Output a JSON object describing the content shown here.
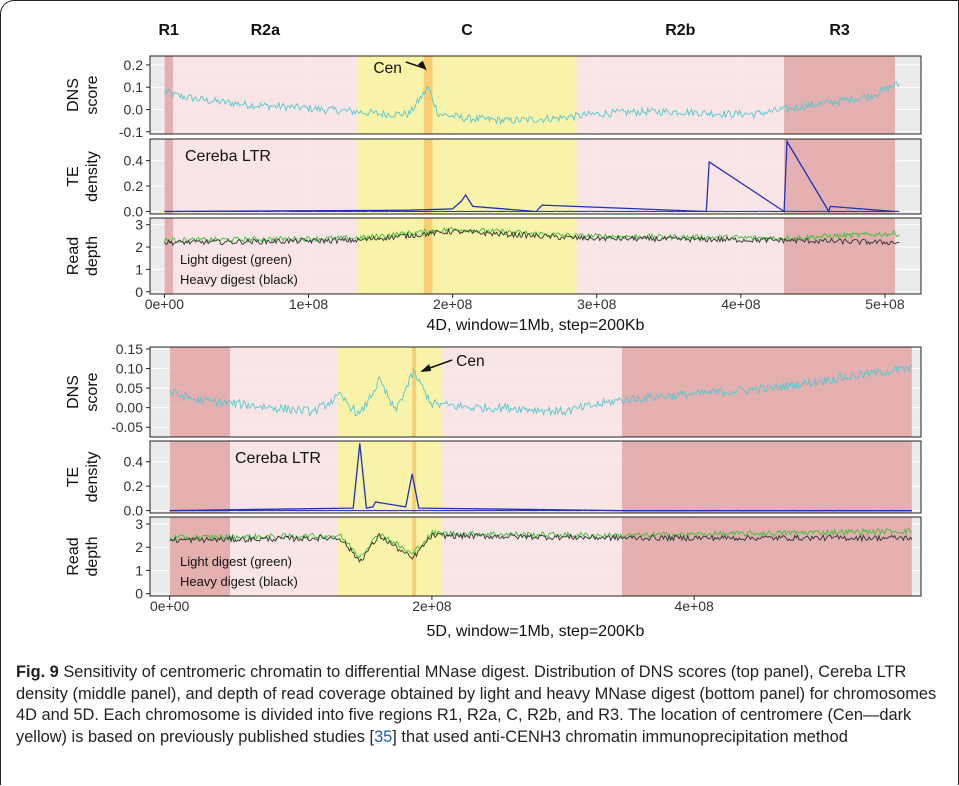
{
  "figure": {
    "caption_label": "Fig. 9",
    "caption_part1": " Sensitivity of centromeric chromatin to differential MNase digest. Distribution of DNS scores (top panel), Cereba LTR density (middle panel), and depth of read coverage obtained by light and heavy MNase digest (bottom panel) for chromosomes 4D and 5D. Each chromosome is divided into five regions R1, R2a, C, R2b, and R3. The location of centromere (Cen—dark yellow) is based on previously published studies [",
    "caption_ref": "35",
    "caption_part2": "] that used anti-CENH3 chromatin immunoprecipitation method"
  },
  "colors": {
    "region_R1": "#e2a4a4",
    "region_R3": "#e2a4a4",
    "region_R2": "#fbe4e4",
    "region_C": "#fcf59e",
    "centromere": "#f7ca6a",
    "dns_line": "#55c7d0",
    "te_line": "#1f2fbf",
    "light_digest": "#3cbf3c",
    "heavy_digest": "#333333",
    "panel_bg": "#ebebeb",
    "grid": "#ffffff"
  },
  "chart_data": [
    {
      "type": "line",
      "chromosome": "4D",
      "xlabel": "4D, window=1Mb, step=200Kb",
      "x_range": [
        0,
        510000000
      ],
      "xlim": [
        -10000000,
        525000000
      ],
      "x_ticks": [
        0,
        100000000,
        200000000,
        300000000,
        400000000,
        500000000
      ],
      "x_tick_labels": [
        "0e+00",
        "1e+08",
        "2e+08",
        "3e+08",
        "4e+08",
        "5e+08"
      ],
      "region_labels": [
        "R1",
        "R2a",
        "C",
        "R2b",
        "R3"
      ],
      "regions": [
        {
          "name": "R1",
          "start": 0,
          "end": 6000000
        },
        {
          "name": "R2a",
          "start": 6000000,
          "end": 134000000
        },
        {
          "name": "C",
          "start": 134000000,
          "end": 286000000
        },
        {
          "name": "R2b",
          "start": 286000000,
          "end": 430000000
        },
        {
          "name": "R3",
          "start": 430000000,
          "end": 507000000
        }
      ],
      "centromere": {
        "start": 180000000,
        "end": 186000000
      },
      "panels": [
        {
          "id": "dns",
          "ylabel_lines": [
            "DNS",
            "score"
          ],
          "ylim": [
            -0.11,
            0.24
          ],
          "y_ticks": [
            -0.1,
            0.0,
            0.1,
            0.2
          ],
          "y_tick_labels": [
            "-0.1",
            "0.0",
            "0.1",
            "0.2"
          ],
          "annotation": {
            "text": "Cen",
            "x": 180000000,
            "y": 0.21
          },
          "series": [
            {
              "x": [
                0,
                10000000,
                30000000,
                60000000,
                90000000,
                110000000,
                134000000,
                150000000,
                170000000,
                183000000,
                190000000,
                210000000,
                240000000,
                270000000,
                300000000,
                330000000,
                360000000,
                390000000,
                410000000,
                430000000,
                450000000,
                470000000,
                490000000,
                507000000
              ],
              "values": [
                0.08,
                0.06,
                0.04,
                0.02,
                0.01,
                0.0,
                -0.01,
                -0.02,
                -0.02,
                0.1,
                -0.02,
                -0.04,
                -0.05,
                -0.04,
                -0.02,
                -0.01,
                -0.01,
                -0.02,
                -0.02,
                0.0,
                0.02,
                0.04,
                0.06,
                0.11
              ]
            }
          ]
        },
        {
          "id": "te",
          "ylabel_lines": [
            "TE",
            "density"
          ],
          "ylim": [
            -0.02,
            0.57
          ],
          "y_ticks": [
            0.0,
            0.2,
            0.4
          ],
          "y_tick_labels": [
            "0.0",
            "0.2",
            "0.4"
          ],
          "annotation": {
            "text": "Cereba LTR"
          },
          "series": [
            {
              "x": [
                0,
                170000000,
                200000000,
                206000000,
                209000000,
                214000000,
                258000000,
                262000000,
                376000000,
                378000000,
                430000000,
                432000000,
                461000000,
                462000000,
                507000000
              ],
              "values": [
                0.0,
                0.01,
                0.02,
                0.08,
                0.13,
                0.04,
                0.0,
                0.05,
                0.0,
                0.39,
                0.0,
                0.55,
                0.0,
                0.04,
                0.0
              ]
            }
          ]
        },
        {
          "id": "read",
          "ylabel_lines": [
            "Read",
            "depth"
          ],
          "ylim": [
            -0.1,
            3.3
          ],
          "y_ticks": [
            0,
            1,
            2,
            3
          ],
          "y_tick_labels": [
            "0",
            "1",
            "2",
            "3"
          ],
          "legend_lines": [
            "Light digest (green)",
            "Heavy digest (black)"
          ],
          "series": [
            {
              "name": "Light digest (green)",
              "x": [
                0,
                134000000,
                200000000,
                286000000,
                430000000,
                507000000
              ],
              "values": [
                2.3,
                2.4,
                2.8,
                2.5,
                2.4,
                2.6
              ]
            },
            {
              "name": "Heavy digest (black)",
              "x": [
                0,
                134000000,
                200000000,
                286000000,
                430000000,
                507000000
              ],
              "values": [
                2.2,
                2.3,
                2.7,
                2.4,
                2.3,
                2.2
              ]
            }
          ]
        }
      ]
    },
    {
      "type": "line",
      "chromosome": "5D",
      "xlabel": "5D, window=1Mb, step=200Kb",
      "x_range": [
        0,
        566000000
      ],
      "xlim": [
        -15000000,
        573000000
      ],
      "x_ticks": [
        0,
        200000000,
        400000000
      ],
      "x_tick_labels": [
        "0e+00",
        "2e+08",
        "4e+08"
      ],
      "regions": [
        {
          "name": "R1",
          "start": 0,
          "end": 46000000
        },
        {
          "name": "R2a",
          "start": 46000000,
          "end": 128000000
        },
        {
          "name": "C",
          "start": 128000000,
          "end": 207000000
        },
        {
          "name": "R2b",
          "start": 207000000,
          "end": 345000000
        },
        {
          "name": "R3",
          "start": 345000000,
          "end": 566000000
        }
      ],
      "centromere": {
        "start": 185000000,
        "end": 188000000
      },
      "panels": [
        {
          "id": "dns",
          "ylabel_lines": [
            "DNS",
            "score"
          ],
          "ylim": [
            -0.075,
            0.155
          ],
          "y_ticks": [
            -0.05,
            0.0,
            0.05,
            0.1,
            0.15
          ],
          "y_tick_labels": [
            "-0.05",
            "0.00",
            "0.05",
            "0.10",
            "0.15"
          ],
          "annotation": {
            "text": "Cen",
            "x": 188000000,
            "y": 0.12
          },
          "series": [
            {
              "x": [
                0,
                20000000,
                50000000,
                80000000,
                110000000,
                130000000,
                145000000,
                160000000,
                172000000,
                186000000,
                200000000,
                230000000,
                260000000,
                300000000,
                345000000,
                380000000,
                420000000,
                460000000,
                500000000,
                540000000,
                566000000
              ],
              "values": [
                0.04,
                0.02,
                0.01,
                0.0,
                -0.01,
                0.03,
                -0.02,
                0.07,
                -0.01,
                0.09,
                0.01,
                0.0,
                0.0,
                -0.01,
                0.02,
                0.03,
                0.04,
                0.05,
                0.07,
                0.09,
                0.1
              ]
            }
          ]
        },
        {
          "id": "te",
          "ylabel_lines": [
            "TE",
            "density"
          ],
          "ylim": [
            -0.02,
            0.57
          ],
          "y_ticks": [
            0.0,
            0.2,
            0.4
          ],
          "y_tick_labels": [
            "0.0",
            "0.2",
            "0.4"
          ],
          "annotation": {
            "text": "Cereba LTR"
          },
          "series": [
            {
              "x": [
                0,
                140000000,
                145000000,
                150000000,
                155000000,
                157000000,
                180000000,
                185000000,
                190000000,
                345000000,
                566000000
              ],
              "values": [
                0.0,
                0.02,
                0.55,
                0.02,
                0.03,
                0.07,
                0.03,
                0.3,
                0.02,
                0.0,
                0.0
              ]
            }
          ]
        },
        {
          "id": "read",
          "ylabel_lines": [
            "Read",
            "depth"
          ],
          "ylim": [
            -0.1,
            3.3
          ],
          "y_ticks": [
            0,
            1,
            2,
            3
          ],
          "y_tick_labels": [
            "0",
            "1",
            "2",
            "3"
          ],
          "legend_lines": [
            "Light digest (green)",
            "Heavy digest (black)"
          ],
          "series": [
            {
              "name": "Light digest (green)",
              "x": [
                0,
                130000000,
                145000000,
                160000000,
                185000000,
                200000000,
                345000000,
                566000000
              ],
              "values": [
                2.4,
                2.5,
                1.6,
                2.6,
                1.7,
                2.6,
                2.5,
                2.7
              ]
            },
            {
              "name": "Heavy digest (black)",
              "x": [
                0,
                130000000,
                145000000,
                160000000,
                185000000,
                200000000,
                345000000,
                566000000
              ],
              "values": [
                2.3,
                2.4,
                1.4,
                2.5,
                1.5,
                2.5,
                2.4,
                2.4
              ]
            }
          ]
        }
      ]
    }
  ]
}
